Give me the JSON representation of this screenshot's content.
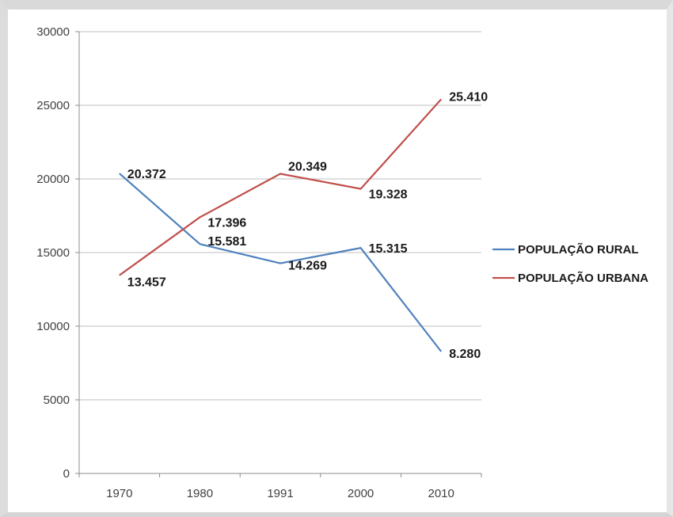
{
  "chart_data": {
    "type": "line",
    "categories": [
      "1970",
      "1980",
      "1991",
      "2000",
      "2010"
    ],
    "series": [
      {
        "name": "POPULAÇÃO RURAL",
        "values": [
          20372,
          15581,
          14269,
          15315,
          8280
        ],
        "labels": [
          "20.372",
          "15.581",
          "14.269",
          "15.315",
          "8.280"
        ],
        "color": "#4f81bd"
      },
      {
        "name": "POPULAÇÃO URBANA",
        "values": [
          13457,
          17396,
          20349,
          19328,
          25410
        ],
        "labels": [
          "13.457",
          "17.396",
          "20.349",
          "19.328",
          "25.410"
        ],
        "color": "#c0504d"
      }
    ],
    "ylim": [
      0,
      30000
    ],
    "yticks": [
      "0",
      "5000",
      "10000",
      "15000",
      "20000",
      "25000",
      "30000"
    ],
    "grid": true,
    "legend_position": "right"
  }
}
